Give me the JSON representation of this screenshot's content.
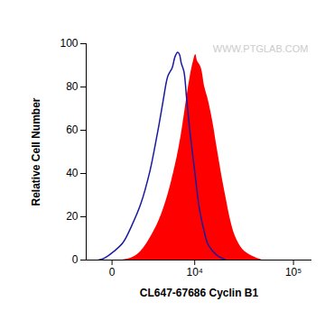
{
  "chart_data": {
    "type": "line",
    "x_label": "CL647-67686 Cyclin B1",
    "y_label": "Relative Cell Number",
    "log": "x",
    "xlim": [
      -1500,
      150000
    ],
    "xticks": [
      0,
      {
        "value": 10000,
        "label": "10⁴"
      },
      {
        "value": 100000,
        "label": "10⁵"
      }
    ],
    "ylim": [
      0,
      100
    ],
    "yticks": [
      0,
      20,
      40,
      60,
      80,
      100
    ],
    "grid": false,
    "annotations": [
      {
        "text": "WWW.PTGLAB.COM"
      }
    ],
    "series": [
      {
        "type": "area",
        "color": "#ff0000",
        "x": [
          530,
          1070,
          1730,
          2540,
          3510,
          4700,
          6140,
          6970,
          7890,
          8900,
          9560,
          10260,
          10740,
          11780,
          12900,
          14100,
          15740,
          17600,
          19570,
          21800,
          24200,
          26900,
          31800,
          39000,
          49800
        ],
        "values": [
          0,
          1,
          4,
          10,
          18,
          30,
          47,
          58,
          72,
          85,
          91,
          95,
          92,
          89,
          80,
          74,
          64,
          51,
          39,
          28,
          18,
          11,
          5,
          2,
          0
        ]
      },
      {
        "type": "line",
        "color": "#1a1aa0",
        "x": [
          -680,
          -340,
          80,
          530,
          1070,
          1730,
          2540,
          3000,
          3510,
          4070,
          4700,
          5380,
          5830,
          6300,
          6630,
          6970,
          7510,
          8090,
          8900,
          10000,
          11250,
          12600,
          14100,
          17600,
          21800
        ],
        "values": [
          0,
          1,
          4,
          8,
          16,
          26,
          41,
          51,
          62,
          74,
          85,
          89,
          94,
          96,
          95,
          91,
          87,
          74,
          58,
          41,
          24,
          14,
          7,
          2,
          0
        ]
      }
    ]
  }
}
